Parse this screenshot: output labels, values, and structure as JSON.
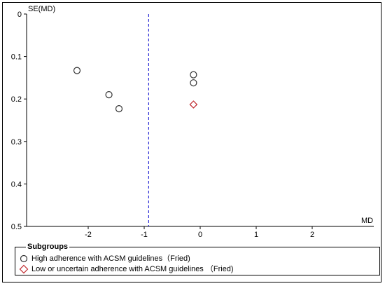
{
  "chart_data": {
    "type": "scatter",
    "title": "",
    "xlabel": "MD",
    "ylabel": "SE(MD)",
    "xlim": [
      -3.1,
      3.1
    ],
    "ylim": [
      0,
      0.5
    ],
    "y_inverted": true,
    "x_ticks": [
      "-2",
      "-1",
      "0",
      "1",
      "2"
    ],
    "y_ticks": [
      "0",
      "0.1",
      "0.2",
      "0.3",
      "0.4",
      "0.5"
    ],
    "reference_line": {
      "x": -0.92,
      "style": "dashed",
      "color": "#2b2bd6"
    },
    "series": [
      {
        "name": "High adherence with ACSM guidelines（Fried)",
        "marker": "circle",
        "color": "#333333",
        "points": [
          {
            "x": -2.2,
            "y": 0.133
          },
          {
            "x": -1.63,
            "y": 0.19
          },
          {
            "x": -1.45,
            "y": 0.223
          },
          {
            "x": -0.12,
            "y": 0.143
          },
          {
            "x": -0.12,
            "y": 0.162
          }
        ]
      },
      {
        "name": "Low or uncertain adherence with ACSM guidelines （Fried)",
        "marker": "diamond",
        "color": "#c0282d",
        "points": [
          {
            "x": -0.12,
            "y": 0.213
          }
        ]
      }
    ],
    "legend": {
      "title": "Subgroups",
      "placement": "bottom"
    }
  }
}
